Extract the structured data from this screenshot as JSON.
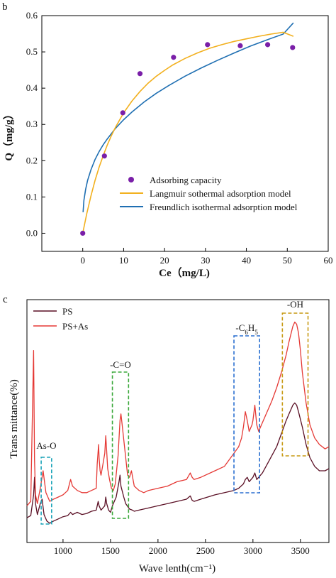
{
  "colors": {
    "purple_marker": "#7a1fa8",
    "langmuir": "#f2b01e",
    "freundlich": "#1f6fb2",
    "ps": "#5a0f24",
    "ps_as": "#e53935",
    "box_cyan": "#1aa3b8",
    "box_green": "#3aa83a",
    "box_blue": "#2a6fd0",
    "box_gold": "#c79a14"
  },
  "chart_data": [
    {
      "panel_label": "b",
      "type": "scatter",
      "xlabel": "Ce（mg/L)",
      "ylabel": "Q（mg/g）",
      "xlim": [
        -10,
        60
      ],
      "ylim": [
        -0.05,
        0.6
      ],
      "xticks": [
        0,
        10,
        20,
        30,
        40,
        50,
        60
      ],
      "yticks": [
        0.0,
        0.1,
        0.2,
        0.3,
        0.4,
        0.5,
        0.6
      ],
      "xtick_labels": [
        "0",
        "10",
        "20",
        "30",
        "40",
        "50",
        "60"
      ],
      "ytick_labels": [
        "0.0",
        "0.1",
        "0.2",
        "0.3",
        "0.4",
        "0.5",
        "0.6"
      ],
      "legend_position": "bottom-right",
      "series": [
        {
          "name": "Adsorbing capacity",
          "kind": "scatter",
          "color": "#7a1fa8",
          "x": [
            0.0,
            5.3,
            9.8,
            14.0,
            22.2,
            30.5,
            38.5,
            45.2,
            51.3
          ],
          "y": [
            0.0,
            0.213,
            0.332,
            0.44,
            0.485,
            0.52,
            0.517,
            0.52,
            0.512
          ]
        },
        {
          "name": "Langmuir sothermal adsorption model",
          "kind": "line",
          "color": "#f2b01e",
          "x": [
            0,
            1,
            2,
            3,
            4,
            5,
            6,
            7,
            8,
            10,
            12,
            14,
            16,
            18,
            20,
            22,
            25,
            28,
            31,
            34,
            37,
            40,
            43,
            46,
            49,
            51.5
          ],
          "y": [
            0.0,
            0.055,
            0.103,
            0.145,
            0.182,
            0.214,
            0.243,
            0.269,
            0.292,
            0.332,
            0.364,
            0.391,
            0.414,
            0.433,
            0.449,
            0.464,
            0.482,
            0.497,
            0.51,
            0.52,
            0.529,
            0.536,
            0.543,
            0.549,
            0.554,
            0.543
          ]
        },
        {
          "name": "Freundlich isothermal adsorption model",
          "kind": "line",
          "color": "#1f6fb2",
          "x": [
            0.08,
            0.3,
            0.7,
            1.2,
            2,
            3,
            4,
            5,
            6,
            8,
            10,
            12,
            15,
            18,
            21,
            25,
            29,
            33,
            37,
            41,
            45,
            49,
            51.5
          ],
          "y": [
            0.058,
            0.091,
            0.121,
            0.146,
            0.175,
            0.203,
            0.225,
            0.244,
            0.26,
            0.289,
            0.313,
            0.334,
            0.362,
            0.386,
            0.407,
            0.433,
            0.456,
            0.477,
            0.497,
            0.516,
            0.533,
            0.549,
            0.58
          ]
        }
      ]
    },
    {
      "panel_label": "c",
      "type": "line",
      "xlabel": "Wave lenth(cm⁻¹)",
      "ylabel": "Trans mittance(%)",
      "xlim": [
        620,
        3800
      ],
      "xticks": [
        1000,
        1500,
        2000,
        2500,
        3000,
        3500
      ],
      "xtick_labels": [
        "1000",
        "1500",
        "2000",
        "2500",
        "3000",
        "3500"
      ],
      "ytick_labels": [],
      "legend_position": "top-left",
      "annotations": [
        {
          "label": "As-O",
          "x_range": [
            770,
            880
          ]
        },
        {
          "label": "-C=O",
          "x_range": [
            1520,
            1690
          ]
        },
        {
          "label": "-C6H5",
          "label_parts": [
            "-C",
            "6",
            "H",
            "5"
          ],
          "x_range": [
            2800,
            3070
          ]
        },
        {
          "label": "-OH",
          "x_range": [
            3310,
            3580
          ]
        }
      ],
      "series": [
        {
          "name": "PS",
          "color": "#5a0f24",
          "x": [
            620,
            660,
            690,
            700,
            710,
            730,
            760,
            780,
            800,
            830,
            860,
            900,
            950,
            1000,
            1050,
            1080,
            1100,
            1150,
            1200,
            1250,
            1300,
            1350,
            1370,
            1380,
            1400,
            1440,
            1450,
            1460,
            1480,
            1500,
            1520,
            1560,
            1590,
            1600,
            1610,
            1640,
            1660,
            1700,
            1730,
            1750,
            1800,
            1900,
            2000,
            2100,
            2200,
            2300,
            2340,
            2360,
            2380,
            2450,
            2600,
            2800,
            2850,
            2900,
            2920,
            2940,
            2960,
            3000,
            3020,
            3040,
            3080,
            3100,
            3150,
            3200,
            3250,
            3300,
            3350,
            3380,
            3420,
            3440,
            3460,
            3480,
            3520,
            3560,
            3600,
            3650,
            3700,
            3760,
            3800
          ],
          "y": [
            0.035,
            0.045,
            0.14,
            0.22,
            0.1,
            0.05,
            0.1,
            0.12,
            0.05,
            0.02,
            0.01,
            0.02,
            0.03,
            0.04,
            0.045,
            0.06,
            0.05,
            0.06,
            0.05,
            0.055,
            0.065,
            0.07,
            0.11,
            0.09,
            0.07,
            0.09,
            0.13,
            0.1,
            0.07,
            0.06,
            0.09,
            0.13,
            0.2,
            0.23,
            0.18,
            0.13,
            0.1,
            0.075,
            0.07,
            0.065,
            0.07,
            0.08,
            0.09,
            0.1,
            0.11,
            0.12,
            0.135,
            0.115,
            0.11,
            0.12,
            0.14,
            0.16,
            0.17,
            0.19,
            0.21,
            0.22,
            0.2,
            0.22,
            0.24,
            0.21,
            0.23,
            0.24,
            0.28,
            0.32,
            0.36,
            0.42,
            0.48,
            0.51,
            0.55,
            0.56,
            0.55,
            0.52,
            0.45,
            0.37,
            0.31,
            0.27,
            0.25,
            0.25,
            0.26
          ]
        },
        {
          "name": "PS+As",
          "color": "#e53935",
          "x": [
            620,
            660,
            690,
            700,
            710,
            730,
            760,
            790,
            820,
            860,
            900,
            950,
            1000,
            1050,
            1080,
            1100,
            1150,
            1200,
            1250,
            1300,
            1350,
            1360,
            1375,
            1380,
            1390,
            1400,
            1420,
            1440,
            1450,
            1460,
            1470,
            1490,
            1510,
            1530,
            1550,
            1580,
            1600,
            1610,
            1620,
            1650,
            1680,
            1700,
            1720,
            1750,
            1800,
            1850,
            1900,
            2000,
            2100,
            2200,
            2300,
            2340,
            2360,
            2380,
            2450,
            2600,
            2700,
            2800,
            2850,
            2880,
            2900,
            2920,
            2940,
            2960,
            2990,
            3000,
            3020,
            3040,
            3060,
            3080,
            3150,
            3200,
            3250,
            3300,
            3350,
            3380,
            3420,
            3440,
            3460,
            3480,
            3500,
            3520,
            3560,
            3600,
            3650,
            3700,
            3760,
            3800
          ],
          "y": [
            0.09,
            0.11,
            0.8,
            0.3,
            0.14,
            0.1,
            0.17,
            0.25,
            0.15,
            0.11,
            0.12,
            0.13,
            0.14,
            0.16,
            0.21,
            0.18,
            0.16,
            0.15,
            0.15,
            0.16,
            0.17,
            0.28,
            0.37,
            0.31,
            0.25,
            0.23,
            0.28,
            0.33,
            0.41,
            0.34,
            0.26,
            0.21,
            0.17,
            0.16,
            0.19,
            0.32,
            0.48,
            0.51,
            0.47,
            0.35,
            0.23,
            0.22,
            0.25,
            0.18,
            0.16,
            0.15,
            0.16,
            0.17,
            0.18,
            0.2,
            0.21,
            0.24,
            0.22,
            0.21,
            0.22,
            0.25,
            0.27,
            0.33,
            0.36,
            0.4,
            0.45,
            0.52,
            0.48,
            0.43,
            0.46,
            0.48,
            0.55,
            0.46,
            0.43,
            0.45,
            0.52,
            0.57,
            0.63,
            0.7,
            0.78,
            0.84,
            0.91,
            0.93,
            0.92,
            0.88,
            0.8,
            0.7,
            0.56,
            0.46,
            0.4,
            0.37,
            0.35,
            0.36
          ]
        }
      ]
    }
  ]
}
